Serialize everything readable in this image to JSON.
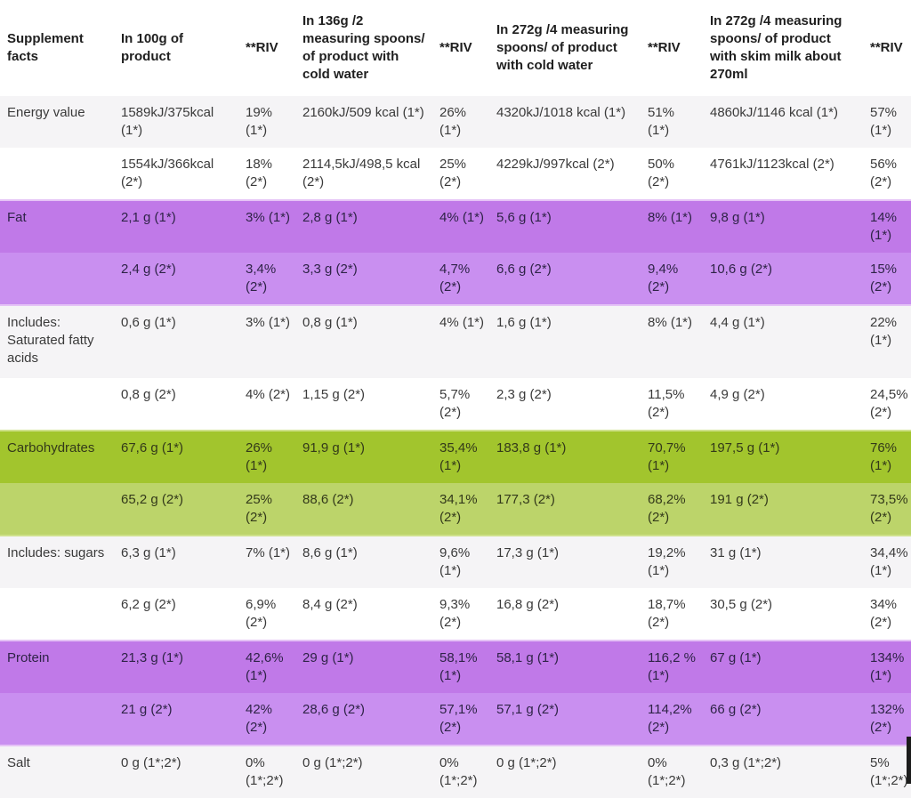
{
  "table": {
    "title": "Supplement facts",
    "columns": [
      "Supplement facts",
      "In 100g of product",
      "**RIV",
      "In 136g /2 measuring spoons/ of product with cold water",
      "**RIV",
      "In 272g /4 measuring spoons/ of product with cold water",
      "**RIV",
      "In 272g /4 measuring spoons/ of product with skim milk about 270ml",
      "**RIV"
    ],
    "rows": [
      {
        "label": "Energy value",
        "band": "gray",
        "tall": false,
        "cells": [
          "1589kJ/375kcal (1*)",
          "19% (1*)",
          "2160kJ/509 kcal (1*)",
          "26% (1*)",
          "4320kJ/1018 kcal (1*)",
          "51% (1*)",
          "4860kJ/1146 kcal (1*)",
          "57% (1*)"
        ]
      },
      {
        "label": "",
        "band": "white",
        "tall": false,
        "cells": [
          "1554kJ/366kcal (2*)",
          "18% (2*)",
          "2114,5kJ/498,5 kcal (2*)",
          "25% (2*)",
          "4229kJ/997kcal (2*)",
          "50% (2*)",
          "4761kJ/1123kcal (2*)",
          "56% (2*)"
        ]
      },
      {
        "label": "Fat",
        "band": "purple-a",
        "tall": false,
        "cells": [
          "2,1 g (1*)",
          "3% (1*)",
          "2,8 g (1*)",
          "4% (1*)",
          "5,6 g (1*)",
          "8% (1*)",
          "9,8 g (1*)",
          "14% (1*)"
        ]
      },
      {
        "label": "",
        "band": "purple-b",
        "tall": false,
        "cells": [
          "2,4 g (2*)",
          "3,4% (2*)",
          "3,3 g (2*)",
          "4,7% (2*)",
          "6,6 g (2*)",
          "9,4% (2*)",
          "10,6 g (2*)",
          "15% (2*)"
        ]
      },
      {
        "label": "Includes: Saturated fatty acids",
        "band": "gray",
        "tall": true,
        "cells": [
          "0,6 g (1*)",
          "3% (1*)",
          "0,8 g (1*)",
          "4% (1*)",
          "1,6 g (1*)",
          "8% (1*)",
          "4,4  g (1*)",
          "22% (1*)"
        ]
      },
      {
        "label": "",
        "band": "white",
        "tall": false,
        "cells": [
          "0,8 g (2*)",
          "4% (2*)",
          "1,15 g (2*)",
          "5,7% (2*)",
          "2,3 g (2*)",
          "11,5% (2*)",
          "4,9 g (2*)",
          "24,5% (2*)"
        ]
      },
      {
        "label": "Carbohydrates",
        "band": "green-a",
        "tall": false,
        "cells": [
          "67,6 g (1*)",
          "26% (1*)",
          "91,9  g (1*)",
          "35,4% (1*)",
          "183,8  g (1*)",
          "70,7% (1*)",
          "197,5  g (1*)",
          "76% (1*)"
        ]
      },
      {
        "label": "",
        "band": "green-b",
        "tall": false,
        "cells": [
          "65,2 g (2*)",
          "25% (2*)",
          "88,6 (2*)",
          "34,1% (2*)",
          "177,3 (2*)",
          "68,2% (2*)",
          "191 g (2*)",
          "73,5% (2*)"
        ]
      },
      {
        "label": "Includes: sugars",
        "band": "gray",
        "tall": false,
        "cells": [
          "6,3 g (1*)",
          "7% (1*)",
          "8,6 g (1*)",
          "9,6% (1*)",
          "17,3 g (1*)",
          "19,2% (1*)",
          "31  g (1*)",
          "34,4% (1*)"
        ]
      },
      {
        "label": "",
        "band": "white",
        "tall": false,
        "cells": [
          "6,2 g (2*)",
          "6,9% (2*)",
          "8,4 g (2*)",
          "9,3% (2*)",
          "16,8 g (2*)",
          "18,7% (2*)",
          "30,5 g (2*)",
          "34% (2*)"
        ]
      },
      {
        "label": "Protein",
        "band": "purple-a",
        "tall": false,
        "cells": [
          "21,3 g (1*)",
          "42,6% (1*)",
          "29 g (1*)",
          "58,1% (1*)",
          "58,1 g (1*)",
          "116,2 % (1*)",
          "67 g (1*)",
          "134% (1*)"
        ]
      },
      {
        "label": "",
        "band": "purple-b",
        "tall": false,
        "cells": [
          "21 g (2*)",
          "42% (2*)",
          "28,6 g (2*)",
          "57,1% (2*)",
          "57,1 g (2*)",
          "114,2% (2*)",
          "66 g (2*)",
          "132% (2*)"
        ]
      },
      {
        "label": "Salt",
        "band": "gray",
        "tall": false,
        "cells": [
          "0 g (1*;2*)",
          "0% (1*;2*)",
          "0 g (1*;2*)",
          "0% (1*;2*)",
          "0 g (1*;2*)",
          "0% (1*;2*)",
          "0,3 g (1*;2*)",
          "5% (1*;2*)"
        ]
      }
    ],
    "colors": {
      "purple_row_dark": "#c079e8",
      "purple_row_light": "#c98ff0",
      "green_row_dark": "#a2c52d",
      "green_row_light": "#bcd46a",
      "gray_row": "#f5f4f6",
      "header_text": "#1f1f1f",
      "body_text": "#3a3a3a"
    }
  }
}
